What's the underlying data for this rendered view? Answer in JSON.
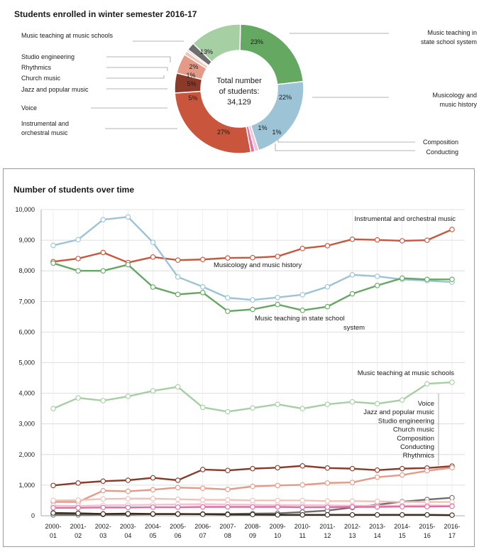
{
  "colors": {
    "voice": "#8b3a2a",
    "instrumental": "#c9553c",
    "jazz": "#e59a87",
    "church": "#f0c2b6",
    "rhythmics": "#ddd0cc",
    "studio": "#6e6e6e",
    "music_schools": "#a6cfa3",
    "state_school": "#64a861",
    "musicology": "#9cc3d6",
    "composition": "#f5c0d3",
    "conducting": "#e06ea0",
    "rhythmics_line": "#3e2a1a"
  },
  "chart_data": [
    {
      "type": "pie",
      "title": "Students enrolled in winter semester 2016-17",
      "center_label": "Total number of students:",
      "center_value": "34,129",
      "slices": [
        {
          "label": "Music teaching in state school system",
          "value": 23,
          "display": "23%",
          "color": "#64a861"
        },
        {
          "label": "Musicology and music history",
          "value": 22,
          "display": "22%",
          "color": "#9cc3d6"
        },
        {
          "label": "Composition",
          "value": 1,
          "display": "1%",
          "color": "#f5c0d3"
        },
        {
          "label": "Conducting",
          "value": 1,
          "display": "1%",
          "color": "#e06ea0"
        },
        {
          "label": "Instrumental and orchestral music",
          "value": 27,
          "display": "27%",
          "color": "#c9553c"
        },
        {
          "label": "Voice",
          "value": 5,
          "display": "5%",
          "color": "#8b3a2a"
        },
        {
          "label": "Jazz and popular music",
          "value": 5,
          "display": "5%",
          "color": "#e59a87"
        },
        {
          "label": "Church music",
          "value": 1,
          "display": "1%",
          "color": "#f0c2b6"
        },
        {
          "label": "Rhythmics",
          "value": 0.5,
          "display": "",
          "color": "#ddd0cc"
        },
        {
          "label": "Studio engineering",
          "value": 2,
          "display": "2%",
          "color": "#6e6e6e"
        },
        {
          "label": "Music teaching at music schools",
          "value": 13,
          "display": "13%",
          "color": "#a6cfa3"
        }
      ]
    },
    {
      "type": "line",
      "title": "Number of students over time",
      "x": [
        "2000-01",
        "2001-02",
        "2002-03",
        "2003-04",
        "2004-05",
        "2005-06",
        "2006-07",
        "2007-08",
        "2008-09",
        "2009-10",
        "2010-11",
        "2011-12",
        "2012-13",
        "2013-14",
        "2014-15",
        "2015-16",
        "2016-17"
      ],
      "ylim": [
        0,
        10000
      ],
      "yticks": [
        "0",
        "1,000",
        "2,000",
        "3,000",
        "4,000",
        "5,000",
        "6,000",
        "7,000",
        "8,000",
        "9,000",
        "10,000"
      ],
      "grid": true,
      "series": [
        {
          "name": "Instrumental and orchestral music",
          "color": "#c9553c",
          "values": [
            8300,
            8400,
            8600,
            8270,
            8450,
            8350,
            8370,
            8420,
            8430,
            8470,
            8730,
            8820,
            9030,
            9010,
            8980,
            9000,
            9350
          ]
        },
        {
          "name": "Musicology and music history",
          "color": "#9cc3d6",
          "values": [
            8830,
            9020,
            9670,
            9760,
            8930,
            7800,
            7480,
            7120,
            7050,
            7130,
            7220,
            7480,
            7870,
            7820,
            7720,
            7680,
            7630
          ]
        },
        {
          "name": "Music teaching in state school system",
          "color": "#64a861",
          "values": [
            8250,
            8000,
            8000,
            8200,
            7470,
            7230,
            7290,
            6680,
            6740,
            6900,
            6710,
            6830,
            7250,
            7520,
            7760,
            7720,
            7720
          ]
        },
        {
          "name": "Music teaching at music schools",
          "color": "#a6cfa3",
          "values": [
            3500,
            3850,
            3760,
            3900,
            4080,
            4210,
            3540,
            3400,
            3520,
            3640,
            3500,
            3640,
            3720,
            3660,
            3780,
            4310,
            4360
          ]
        },
        {
          "name": "Voice",
          "color": "#8b3a2a",
          "values": [
            990,
            1070,
            1130,
            1160,
            1240,
            1160,
            1510,
            1480,
            1540,
            1570,
            1630,
            1560,
            1540,
            1490,
            1540,
            1560,
            1620
          ]
        },
        {
          "name": "Jazz and popular music",
          "color": "#e59a87",
          "values": [
            450,
            450,
            820,
            800,
            850,
            920,
            900,
            860,
            960,
            990,
            1010,
            1070,
            1090,
            1260,
            1330,
            1470,
            1570
          ]
        },
        {
          "name": "Studio engineering",
          "color": "#6e6e6e",
          "values": [
            30,
            30,
            40,
            40,
            50,
            50,
            60,
            60,
            70,
            80,
            120,
            170,
            270,
            360,
            460,
            530,
            590
          ]
        },
        {
          "name": "Church music",
          "color": "#f0c2b6",
          "values": [
            500,
            510,
            550,
            560,
            560,
            540,
            520,
            520,
            500,
            500,
            500,
            480,
            480,
            470,
            450,
            450,
            450
          ]
        },
        {
          "name": "Composition",
          "color": "#f5c0d3",
          "values": [
            330,
            320,
            340,
            350,
            360,
            370,
            380,
            370,
            360,
            350,
            350,
            340,
            330,
            330,
            330,
            340,
            330
          ]
        },
        {
          "name": "Conducting",
          "color": "#e06ea0",
          "values": [
            260,
            260,
            270,
            270,
            280,
            280,
            290,
            290,
            290,
            290,
            280,
            280,
            290,
            290,
            300,
            300,
            310
          ]
        },
        {
          "name": "Rhythmics",
          "color": "#3e2a1a",
          "values": [
            90,
            80,
            60,
            70,
            60,
            60,
            50,
            40,
            40,
            30,
            30,
            30,
            30,
            30,
            30,
            30,
            20
          ]
        }
      ],
      "labels_block": [
        "Voice",
        "Jazz and popular music",
        "Studio engineering",
        "Church music",
        "Composition",
        "Conducting",
        "Rhythmics"
      ]
    }
  ]
}
